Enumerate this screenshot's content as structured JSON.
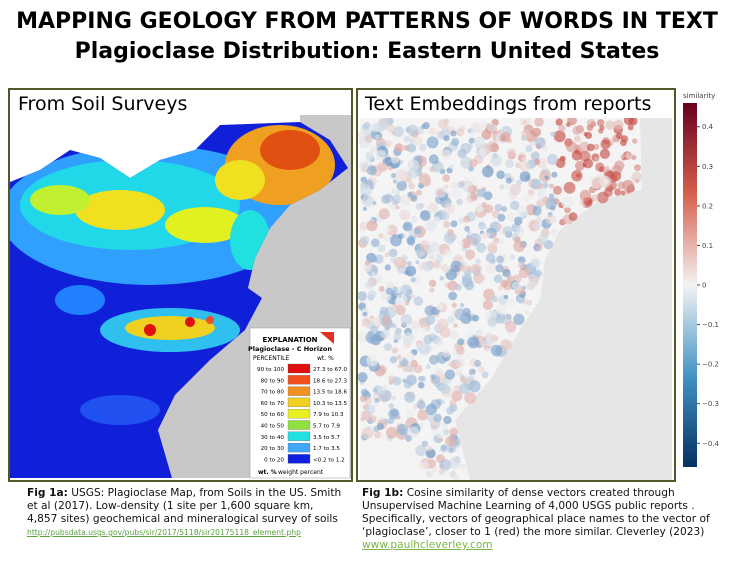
{
  "header": {
    "title": "MAPPING GEOLOGY FROM PATTERNS OF WORDS IN TEXT",
    "subtitle": "Plagioclase Distribution: Eastern United States"
  },
  "left": {
    "heading": "From Soil Surveys",
    "legend": {
      "title": "EXPLANATION",
      "subtitle": "Plagioclase - C Horizon",
      "col1": "PERCENTILE",
      "col2": "wt. %",
      "rows": [
        [
          "90 to 100",
          "27.3 to 67.0"
        ],
        [
          "80 to 90",
          "18.6 to 27.3"
        ],
        [
          "70 to 80",
          "13.5 to 18.6"
        ],
        [
          "60 to 70",
          "10.3 to 13.5"
        ],
        [
          "50 to 60",
          "7.9 to 10.3"
        ],
        [
          "40 to 50",
          "5.7 to 7.9"
        ],
        [
          "30 to 40",
          "3.5 to 5.7"
        ],
        [
          "20 to 30",
          "1.7 to 3.5"
        ],
        [
          "0 to 20",
          "<0.2 to 1.2"
        ]
      ],
      "colors": [
        "#e01010",
        "#f05020",
        "#f09020",
        "#f0d020",
        "#e8f020",
        "#90e040",
        "#20e0e0",
        "#40a8ff",
        "#1020e0"
      ],
      "note_key": "wt. %",
      "note_text": "weight percent"
    },
    "caption": {
      "label": "Fig 1a:",
      "text": " USGS: Plagioclase Map, from Soils in the US. Smith et al (2017). Low-density (1 site per 1,600 square km, 4,857 sites) geochemical and mineralogical survey of soils ",
      "link": "http://pubsdata.usgs.gov/pubs/sir/2017/5118/sir20175118_element.php"
    }
  },
  "right": {
    "heading": "Text Embeddings from reports",
    "colorbar": {
      "label": "similarity",
      "lim": [
        -0.46,
        0.46
      ],
      "ticks": [
        0.4,
        0.3,
        0.2,
        0.1,
        0,
        {
          "value": -0.1,
          "label": "−0.1"
        },
        {
          "value": -0.2,
          "label": "−0.2"
        },
        {
          "value": -0.3,
          "label": "−0.3"
        },
        {
          "value": -0.4,
          "label": "−0.4"
        }
      ]
    },
    "caption": {
      "label": "Fig 1b:",
      "text": " Cosine similarity of dense vectors created through Unsupervised Machine Learning of 4,000 USGS public reports . Specifically, vectors of geographical place names to the vector of ‘plagioclase’, closer to 1 (red) the more similar. Cleverley (2023)",
      "link": "www.paulhcleverley.com"
    }
  }
}
